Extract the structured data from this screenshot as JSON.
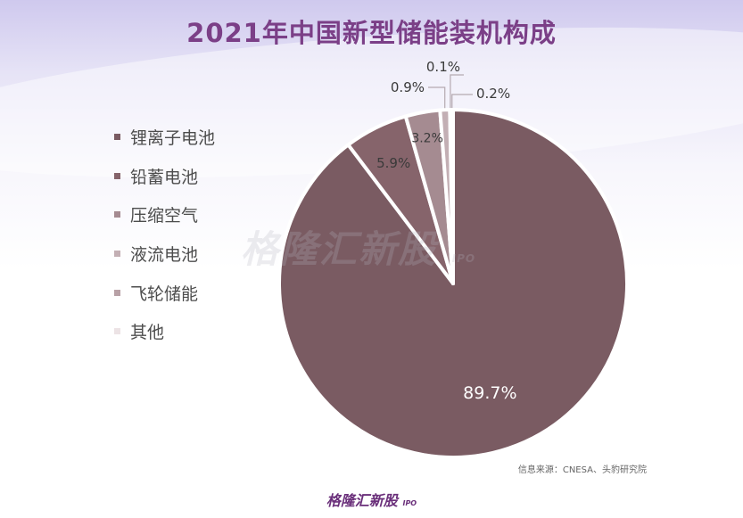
{
  "watermark_text": "格隆汇新股",
  "watermark_sub": "IPO",
  "source_text": "信息来源：CNESA、头豹研究院",
  "footer_logo_text": "格隆汇新股",
  "footer_logo_sub": "IPO",
  "colors": {
    "title": "#7b3f87",
    "slice_1": "#7a5b62",
    "slice_2": "#86646b",
    "slice_3": "#a58b91",
    "slice_4": "#c3afb4",
    "slice_5": "#b8a1a6",
    "slice_6": "#ece3e5"
  },
  "chart_data": {
    "type": "pie",
    "title": "2021年中国新型储能装机构成",
    "legend_position": "left",
    "categories": [
      "锂离子电池",
      "铅蓄电池",
      "压缩空气",
      "液流电池",
      "飞轮储能",
      "其他"
    ],
    "values": [
      89.7,
      5.9,
      3.2,
      0.9,
      0.1,
      0.2
    ],
    "labels": [
      "89.7%",
      "5.9%",
      "3.2%",
      "0.9%",
      "0.1%",
      "0.2%"
    ]
  }
}
